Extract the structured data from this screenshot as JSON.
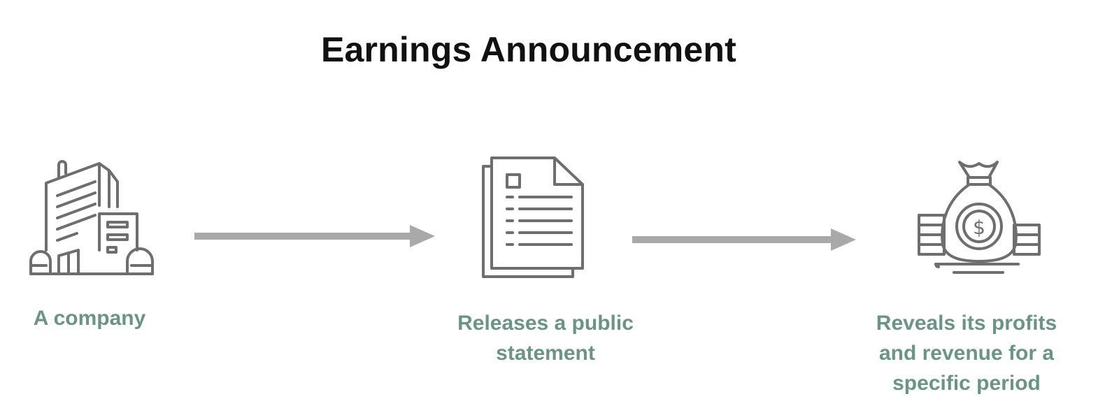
{
  "title": "Earnings Announcement",
  "steps": [
    {
      "label": "A company",
      "icon": "building-icon"
    },
    {
      "label_lines": [
        "Releases a public",
        "statement"
      ],
      "icon": "document-icon"
    },
    {
      "label_lines": [
        "Reveals its profits",
        "and revenue for a",
        "specific period"
      ],
      "icon": "money-bag-icon"
    }
  ],
  "colors": {
    "title": "#111111",
    "label": "#6a9584",
    "icon_stroke": "#6e6e6e",
    "arrow": "#a9a9a9"
  }
}
